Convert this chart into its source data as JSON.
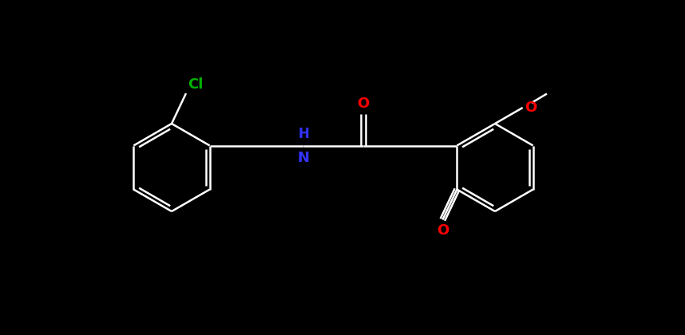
{
  "background_color": "#000000",
  "bond_color": "#ffffff",
  "atom_colors": {
    "Cl": "#00b300",
    "N": "#3333ff",
    "O": "#ff0000",
    "C": "#ffffff",
    "H": "#ffffff"
  },
  "figsize": [
    8.58,
    4.2
  ],
  "dpi": 100,
  "lw": 1.8,
  "r": 55
}
